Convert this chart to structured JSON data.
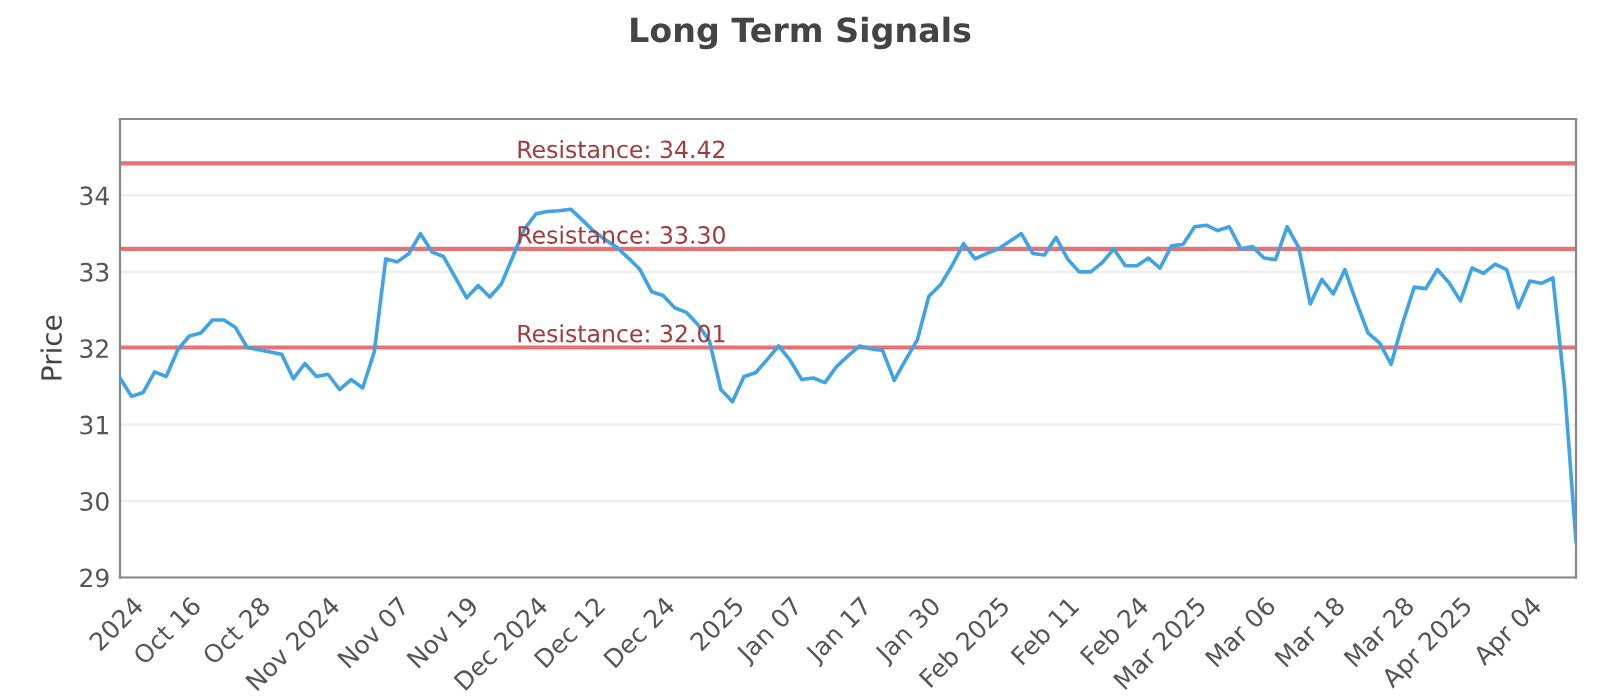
{
  "chart_data": {
    "type": "line",
    "title": "Long Term Signals",
    "ylabel": "Price",
    "categories": [
      null,
      "2024",
      null,
      null,
      null,
      null,
      "Oct 16",
      null,
      null,
      null,
      null,
      null,
      "Oct 28",
      null,
      null,
      null,
      null,
      null,
      "Nov 2024",
      null,
      null,
      null,
      null,
      null,
      "Nov 07",
      null,
      null,
      null,
      null,
      null,
      "Nov 19",
      null,
      null,
      null,
      null,
      null,
      "Dec 2024",
      null,
      null,
      null,
      null,
      "Dec 12",
      null,
      null,
      null,
      null,
      null,
      "Dec 24",
      null,
      null,
      null,
      null,
      null,
      "2025",
      null,
      null,
      null,
      null,
      "Jan 07",
      null,
      null,
      null,
      null,
      null,
      "Jan 17",
      null,
      null,
      null,
      null,
      null,
      "Jan 30",
      null,
      null,
      null,
      null,
      null,
      "Feb 2025",
      null,
      null,
      null,
      null,
      null,
      "Feb 11",
      null,
      null,
      null,
      null,
      null,
      "Feb 24",
      null,
      null,
      null,
      null,
      "Mar 2025",
      null,
      null,
      null,
      null,
      null,
      "Mar 06",
      null,
      null,
      null,
      null,
      null,
      "Mar 18",
      null,
      null,
      null,
      null,
      null,
      "Mar 28",
      null,
      null,
      null,
      null,
      "Apr 2025",
      null,
      null,
      null,
      null,
      null,
      "Apr 04",
      null,
      null,
      null,
      null
    ],
    "series": [
      {
        "color": "#3fa3e6",
        "values": [
          31.61,
          31.37,
          31.42,
          31.69,
          31.63,
          31.98,
          32.16,
          32.2,
          32.37,
          32.37,
          32.27,
          32.01,
          31.98,
          31.95,
          31.92,
          31.6,
          31.8,
          31.63,
          31.66,
          31.46,
          31.59,
          31.48,
          31.95,
          33.17,
          33.13,
          33.24,
          33.5,
          33.26,
          33.2,
          32.93,
          32.66,
          32.82,
          32.67,
          32.84,
          33.2,
          33.56,
          33.76,
          33.79,
          33.8,
          33.82,
          33.68,
          33.53,
          33.42,
          33.32,
          33.18,
          33.03,
          32.74,
          32.69,
          32.53,
          32.47,
          32.31,
          32.1,
          31.46,
          31.3,
          31.63,
          31.68,
          31.85,
          32.03,
          31.84,
          31.59,
          31.61,
          31.55,
          31.76,
          31.9,
          32.03,
          31.99,
          31.97,
          31.58,
          31.85,
          32.11,
          32.68,
          32.83,
          33.08,
          33.37,
          33.17,
          33.24,
          33.3,
          33.4,
          33.5,
          33.24,
          33.22,
          33.45,
          33.17,
          33.0,
          33.0,
          33.12,
          33.3,
          33.08,
          33.08,
          33.18,
          33.05,
          33.34,
          33.36,
          33.59,
          33.61,
          33.54,
          33.59,
          33.3,
          33.33,
          33.18,
          33.16,
          33.59,
          33.32,
          32.58,
          32.9,
          32.71,
          33.03,
          32.6,
          32.2,
          32.07,
          31.79,
          32.33,
          32.8,
          32.78,
          33.03,
          32.86,
          32.62,
          33.05,
          32.98,
          33.1,
          33.03,
          32.53,
          32.88,
          32.85,
          32.92,
          31.5,
          29.47
        ]
      }
    ],
    "ylim": [
      29,
      35
    ],
    "yticks": [
      29,
      30,
      31,
      32,
      33,
      34
    ],
    "grid": "y",
    "marker": "none",
    "line_style": "solid",
    "ref_lines": [
      {
        "axis": "y",
        "value": 34.42,
        "label": "Resistance: 34.42",
        "color": "#e57373"
      },
      {
        "axis": "y",
        "value": 33.3,
        "label": "Resistance: 33.30",
        "color": "#e57373"
      },
      {
        "axis": "y",
        "value": 32.01,
        "label": "Resistance: 32.01",
        "color": "#e57373"
      }
    ]
  }
}
